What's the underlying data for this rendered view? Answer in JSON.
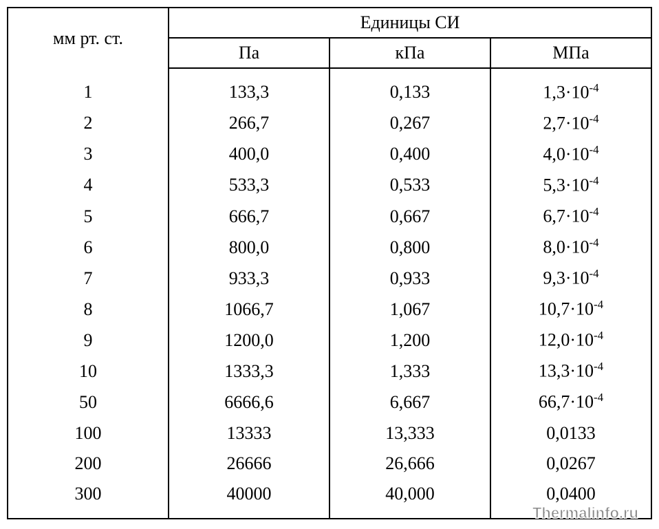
{
  "table": {
    "header": {
      "col0": "мм рт. ст.",
      "group": "Единицы СИ",
      "sub": [
        "Па",
        "кПа",
        "МПа"
      ]
    },
    "rows": [
      {
        "c0": "1",
        "c1": "133,3",
        "c2": "0,133",
        "c3": "1,3·10",
        "exp": "-4"
      },
      {
        "c0": "2",
        "c1": "266,7",
        "c2": "0,267",
        "c3": "2,7·10",
        "exp": "-4"
      },
      {
        "c0": "3",
        "c1": "400,0",
        "c2": "0,400",
        "c3": "4,0·10",
        "exp": "-4"
      },
      {
        "c0": "4",
        "c1": "533,3",
        "c2": "0,533",
        "c3": "5,3·10",
        "exp": "-4"
      },
      {
        "c0": "5",
        "c1": "666,7",
        "c2": "0,667",
        "c3": "6,7·10",
        "exp": "-4"
      },
      {
        "c0": "6",
        "c1": "800,0",
        "c2": "0,800",
        "c3": "8,0·10",
        "exp": "-4"
      },
      {
        "c0": "7",
        "c1": "933,3",
        "c2": "0,933",
        "c3": "9,3·10",
        "exp": "-4"
      },
      {
        "c0": "8",
        "c1": "1066,7",
        "c2": "1,067",
        "c3": "10,7·10",
        "exp": "-4"
      },
      {
        "c0": "9",
        "c1": "1200,0",
        "c2": "1,200",
        "c3": "12,0·10",
        "exp": "-4"
      },
      {
        "c0": "10",
        "c1": "1333,3",
        "c2": "1,333",
        "c3": "13,3·10",
        "exp": "-4"
      },
      {
        "c0": "50",
        "c1": "6666,6",
        "c2": "6,667",
        "c3": "66,7·10",
        "exp": "-4"
      },
      {
        "c0": "100",
        "c1": "13333",
        "c2": "13,333",
        "c3": "0,0133",
        "exp": ""
      },
      {
        "c0": "200",
        "c1": "26666",
        "c2": "26,666",
        "c3": "0,0267",
        "exp": ""
      },
      {
        "c0": "300",
        "c1": "40000",
        "c2": "40,000",
        "c3": "0,0400",
        "exp": ""
      }
    ]
  },
  "watermark": "Thermalinfo.ru",
  "col_widths": [
    "234px",
    "234px",
    "234px",
    "234px"
  ]
}
